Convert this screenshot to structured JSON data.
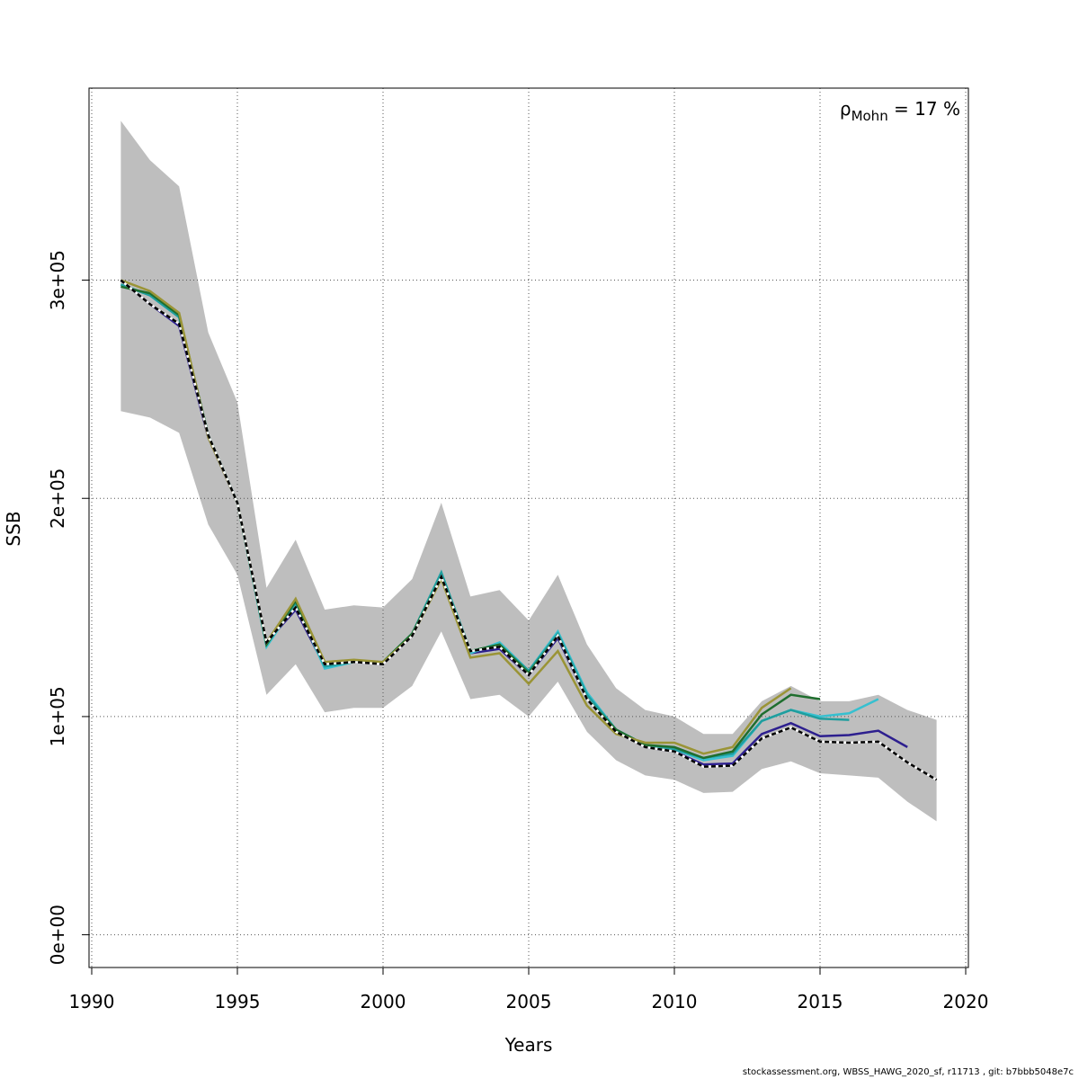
{
  "chart_data": {
    "type": "line",
    "xlabel": "Years",
    "ylabel": "SSB",
    "xlim": [
      1990,
      2020
    ],
    "ylim": [
      -15000,
      388000
    ],
    "x_ticks": [
      1990,
      1995,
      2000,
      2005,
      2010,
      2015,
      2020
    ],
    "x_tick_labels": [
      "1990",
      "1995",
      "2000",
      "2005",
      "2010",
      "2015",
      "2020"
    ],
    "y_ticks": [
      0,
      100000,
      200000,
      300000
    ],
    "y_tick_labels": [
      "0e+00",
      "1e+05",
      "2e+05",
      "3e+05"
    ],
    "grid": true,
    "annotation": {
      "rho": "ρ",
      "sub": "Mohn",
      "rest": " = 17 %"
    },
    "confidence_band": {
      "x": [
        1991,
        1992,
        1993,
        1994,
        1995,
        1996,
        1997,
        1998,
        1999,
        2000,
        2001,
        2002,
        2003,
        2004,
        2005,
        2006,
        2007,
        2008,
        2009,
        2010,
        2011,
        2012,
        2013,
        2014,
        2015,
        2016,
        2017,
        2018,
        2019
      ],
      "lower": [
        240000,
        237000,
        230000,
        188000,
        165000,
        110000,
        124000,
        102000,
        104000,
        104000,
        114000,
        139000,
        108000,
        110000,
        100000,
        116000,
        93000,
        80000,
        73000,
        71000,
        65000,
        65500,
        76000,
        79500,
        74000,
        73000,
        72000,
        61000,
        52000
      ],
      "upper": [
        373000,
        355000,
        343000,
        276000,
        244000,
        159000,
        181000,
        149000,
        151000,
        150000,
        163000,
        198000,
        155000,
        158000,
        144000,
        165000,
        133000,
        113000,
        103000,
        100000,
        92000,
        92000,
        107000,
        114000,
        107000,
        107000,
        110000,
        103000,
        98500
      ]
    },
    "series": [
      {
        "color": "#000000",
        "dashed": true,
        "x": [
          1991,
          1992,
          1993,
          1994,
          1995,
          1996,
          1997,
          1998,
          1999,
          2000,
          2001,
          2002,
          2003,
          2004,
          2005,
          2006,
          2007,
          2008,
          2009,
          2010,
          2011,
          2012,
          2013,
          2014,
          2015,
          2016,
          2017,
          2018,
          2019
        ],
        "values": [
          300000,
          289000,
          280000,
          229000,
          198000,
          134000,
          150000,
          124000,
          125000,
          124000,
          137000,
          164000,
          130000,
          132000,
          119000,
          137000,
          108000,
          93000,
          86000,
          84000,
          77000,
          77500,
          90000,
          95000,
          88500,
          88000,
          88500,
          79000,
          71000
        ]
      },
      {
        "color": "#2d1f8f",
        "x": [
          1991,
          1992,
          1993,
          1994,
          1995,
          1996,
          1997,
          1998,
          1999,
          2000,
          2001,
          2002,
          2003,
          2004,
          2005,
          2006,
          2007,
          2008,
          2009,
          2010,
          2011,
          2012,
          2013,
          2014,
          2015,
          2016,
          2017,
          2018
        ],
        "values": [
          300000,
          289000,
          279000,
          228000,
          198000,
          134000,
          149000,
          123000,
          125000,
          124000,
          137000,
          164000,
          129000,
          131000,
          119000,
          136000,
          108000,
          93000,
          86000,
          84000,
          78000,
          78500,
          92000,
          97000,
          91000,
          91500,
          93500,
          86000
        ]
      },
      {
        "color": "#36c0d0",
        "x": [
          1991,
          1992,
          1993,
          1994,
          1995,
          1996,
          1997,
          1998,
          1999,
          2000,
          2001,
          2002,
          2003,
          2004,
          2005,
          2006,
          2007,
          2008,
          2009,
          2010,
          2011,
          2012,
          2013,
          2014,
          2015,
          2016,
          2017
        ],
        "values": [
          298000,
          293000,
          283000,
          229000,
          198000,
          132000,
          152000,
          122000,
          125000,
          125000,
          138000,
          166000,
          129000,
          134000,
          121000,
          139000,
          111000,
          94000,
          87000,
          85000,
          80000,
          82000,
          98000,
          103000,
          100000,
          101500,
          108000
        ]
      },
      {
        "color": "#1f9e9e",
        "x": [
          1991,
          1992,
          1993,
          1994,
          1995,
          1996,
          1997,
          1998,
          1999,
          2000,
          2001,
          2002,
          2003,
          2004,
          2005,
          2006,
          2007,
          2008,
          2009,
          2010,
          2011,
          2012,
          2013,
          2014,
          2015,
          2016
        ],
        "values": [
          298000,
          293000,
          283000,
          229000,
          198000,
          133000,
          152000,
          123000,
          125000,
          125000,
          138000,
          166000,
          130000,
          133000,
          121000,
          138000,
          110000,
          94000,
          87000,
          85000,
          81000,
          83000,
          98000,
          103000,
          99000,
          98500
        ]
      },
      {
        "color": "#1f6e2e",
        "x": [
          1991,
          1992,
          1993,
          1994,
          1995,
          1996,
          1997,
          1998,
          1999,
          2000,
          2001,
          2002,
          2003,
          2004,
          2005,
          2006,
          2007,
          2008,
          2009,
          2010,
          2011,
          2012,
          2013,
          2014,
          2015
        ],
        "values": [
          297000,
          294000,
          284000,
          229000,
          198000,
          133000,
          153000,
          124000,
          125000,
          125000,
          138000,
          164000,
          130000,
          133000,
          120000,
          137000,
          108000,
          94000,
          87000,
          86000,
          81000,
          84000,
          101000,
          110000,
          108000
        ]
      },
      {
        "color": "#9a9436",
        "x": [
          1991,
          1992,
          1993,
          1994,
          1995,
          1996,
          1997,
          1998,
          1999,
          2000,
          2001,
          2002,
          2003,
          2004,
          2005,
          2006,
          2007,
          2008,
          2009,
          2010,
          2011,
          2012,
          2013,
          2014
        ],
        "values": [
          300000,
          295000,
          285000,
          228000,
          198000,
          134000,
          154000,
          125000,
          126000,
          125000,
          137000,
          163000,
          127000,
          129000,
          115000,
          130000,
          105000,
          92000,
          88000,
          88000,
          83000,
          86000,
          104000,
          113000
        ]
      }
    ]
  },
  "footer": "stockassessment.org, WBSS_HAWG_2020_sf, r11713 , git: b7bbb5048e7c"
}
